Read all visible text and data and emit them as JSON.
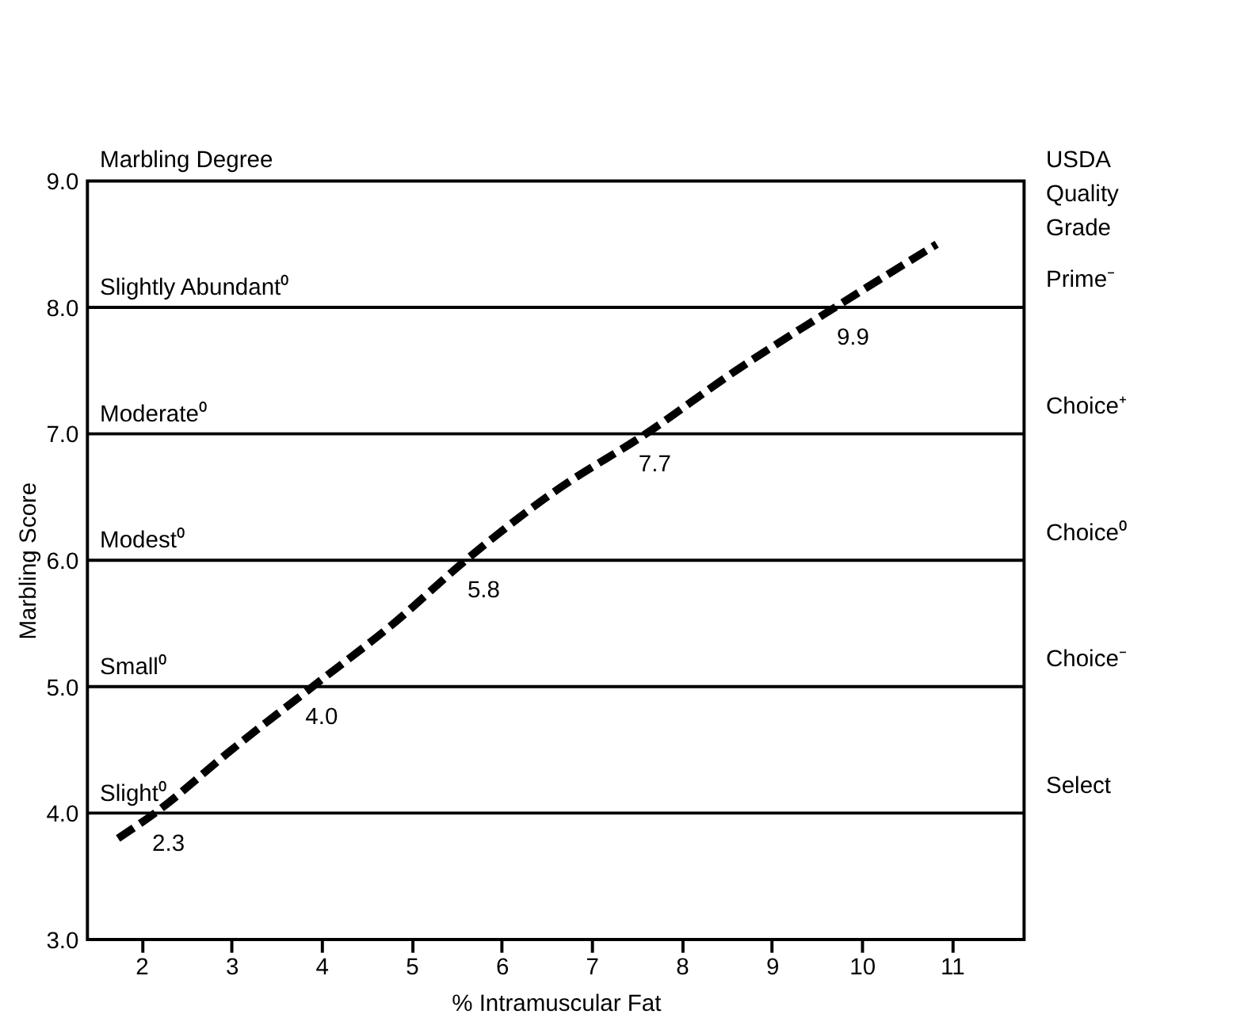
{
  "chart_data": {
    "type": "line",
    "xlabel": "% Intramuscular Fat",
    "ylabel": "Marbling Score",
    "x": [
      1.74,
      2.15,
      3.0,
      3.9,
      4.8,
      5.6,
      6.6,
      7.6,
      8.6,
      9.7,
      10.83
    ],
    "series": [
      {
        "color": "#000000",
        "values": [
          3.8,
          4.0,
          4.5,
          5.0,
          5.5,
          6.0,
          6.55,
          7.0,
          7.5,
          8.0,
          8.5
        ]
      }
    ],
    "line_style": "dashed",
    "marker": "none",
    "grid": false,
    "xlim": [
      1.4,
      11.8
    ],
    "xticks": [
      2,
      3,
      4,
      5,
      6,
      7,
      8,
      9,
      10,
      11
    ],
    "ylim": [
      3,
      9
    ],
    "yticks": [
      {
        "value": 3,
        "label": "3.0"
      },
      {
        "value": 4,
        "label": "4.0"
      },
      {
        "value": 5,
        "label": "5.0"
      },
      {
        "value": 6,
        "label": "6.0"
      },
      {
        "value": 7,
        "label": "7.0"
      },
      {
        "value": 8,
        "label": "8.0"
      },
      {
        "value": 9,
        "label": "9.0"
      }
    ],
    "ref_lines": [
      {
        "axis": "y",
        "value": 4,
        "label": "Slight⁰",
        "color": "#000000"
      },
      {
        "axis": "y",
        "value": 5,
        "label": "Small⁰",
        "color": "#000000"
      },
      {
        "axis": "y",
        "value": 6,
        "label": "Modest⁰",
        "color": "#000000"
      },
      {
        "axis": "y",
        "value": 7,
        "label": "Moderate⁰",
        "color": "#000000"
      },
      {
        "axis": "y",
        "value": 8,
        "label": "Slightly Abundant⁰",
        "color": "#000000"
      }
    ],
    "annotations": [
      "Marbling Degree",
      "USDA Quality Grade",
      "Select",
      "Choice⁻",
      "Choice⁰",
      "Choice⁺",
      "Prime⁻",
      {
        "text": "2.3",
        "x": 2.3,
        "y": 4.0
      },
      {
        "text": "4.0",
        "x": 4.0,
        "y": 5.0
      },
      {
        "text": "5.8",
        "x": 5.8,
        "y": 6.0
      },
      {
        "text": "7.7",
        "x": 7.7,
        "y": 7.0
      },
      {
        "text": "9.9",
        "x": 9.9,
        "y": 8.0
      }
    ]
  }
}
